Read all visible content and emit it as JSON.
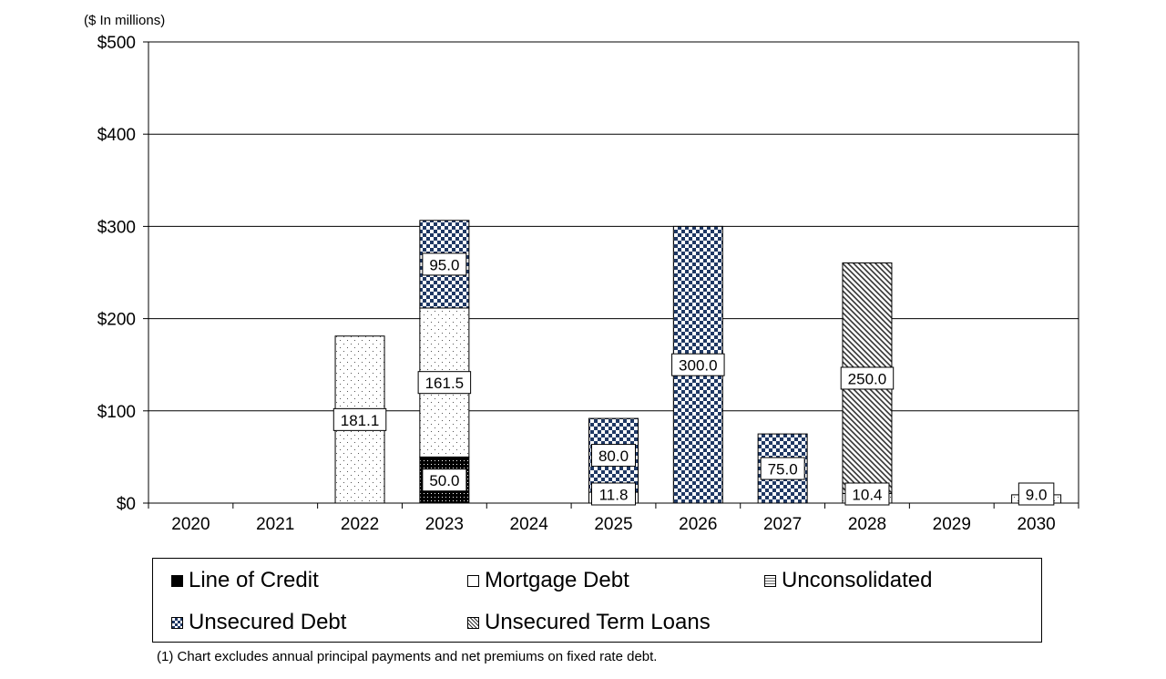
{
  "unit_note": "($ In millions)",
  "footnote": "(1) Chart excludes annual principal payments and net premiums on fixed rate debt.",
  "chart_data": {
    "type": "bar",
    "stacked": true,
    "categories": [
      "2020",
      "2021",
      "2022",
      "2023",
      "2024",
      "2025",
      "2026",
      "2027",
      "2028",
      "2029",
      "2030"
    ],
    "ylim": [
      0,
      500
    ],
    "yticks": [
      0,
      100,
      200,
      300,
      400,
      500
    ],
    "ytick_labels": [
      "$0",
      "$100",
      "$200",
      "$300",
      "$400",
      "$500"
    ],
    "grid": true,
    "legend_position": "bottom",
    "series": [
      {
        "name": "Line of Credit",
        "pattern": "line-of-credit",
        "values": [
          0,
          0,
          0,
          50.0,
          0,
          0,
          0,
          0,
          0,
          0,
          0
        ],
        "labels": [
          "",
          "",
          "",
          "50.0",
          "",
          "",
          "",
          "",
          "",
          "",
          ""
        ]
      },
      {
        "name": "Mortgage Debt",
        "pattern": "mortgage-debt",
        "values": [
          0,
          0,
          181.1,
          161.5,
          0,
          11.8,
          0,
          0,
          10.4,
          0,
          9.0
        ],
        "labels": [
          "",
          "",
          "181.1",
          "161.5",
          "",
          "11.8",
          "",
          "",
          "10.4",
          "",
          "9.0"
        ]
      },
      {
        "name": "Unconsolidated",
        "pattern": "unconsolidated",
        "values": [
          0,
          0,
          0,
          0,
          0,
          0,
          0,
          0,
          0,
          0,
          0
        ],
        "labels": [
          "",
          "",
          "",
          "",
          "",
          "",
          "",
          "",
          "",
          "",
          ""
        ]
      },
      {
        "name": "Unsecured Debt",
        "pattern": "unsecured-debt",
        "values": [
          0,
          0,
          0,
          95.0,
          0,
          80.0,
          300.0,
          75.0,
          0,
          0,
          0
        ],
        "labels": [
          "",
          "",
          "",
          "95.0",
          "",
          "80.0",
          "300.0",
          "75.0",
          "",
          "",
          ""
        ]
      },
      {
        "name": "Unsecured Term Loans",
        "pattern": "unsecured-term-loans",
        "values": [
          0,
          0,
          0,
          0,
          0,
          0,
          0,
          0,
          250.0,
          0,
          0
        ],
        "labels": [
          "",
          "",
          "",
          "",
          "",
          "",
          "",
          "",
          "250.0",
          "",
          ""
        ]
      }
    ],
    "colors": {
      "checker": "#1f3864",
      "dots": "#555555",
      "hatch": "#333333",
      "line_of_credit": "#000000"
    }
  },
  "legend": [
    {
      "label": "Line of Credit",
      "pattern": "line-of-credit"
    },
    {
      "label": "Mortgage Debt",
      "pattern": "mortgage-debt"
    },
    {
      "label": "Unconsolidated",
      "pattern": "unconsolidated"
    },
    {
      "label": "Unsecured Debt",
      "pattern": "unsecured-debt"
    },
    {
      "label": "Unsecured Term Loans",
      "pattern": "unsecured-term-loans"
    }
  ]
}
